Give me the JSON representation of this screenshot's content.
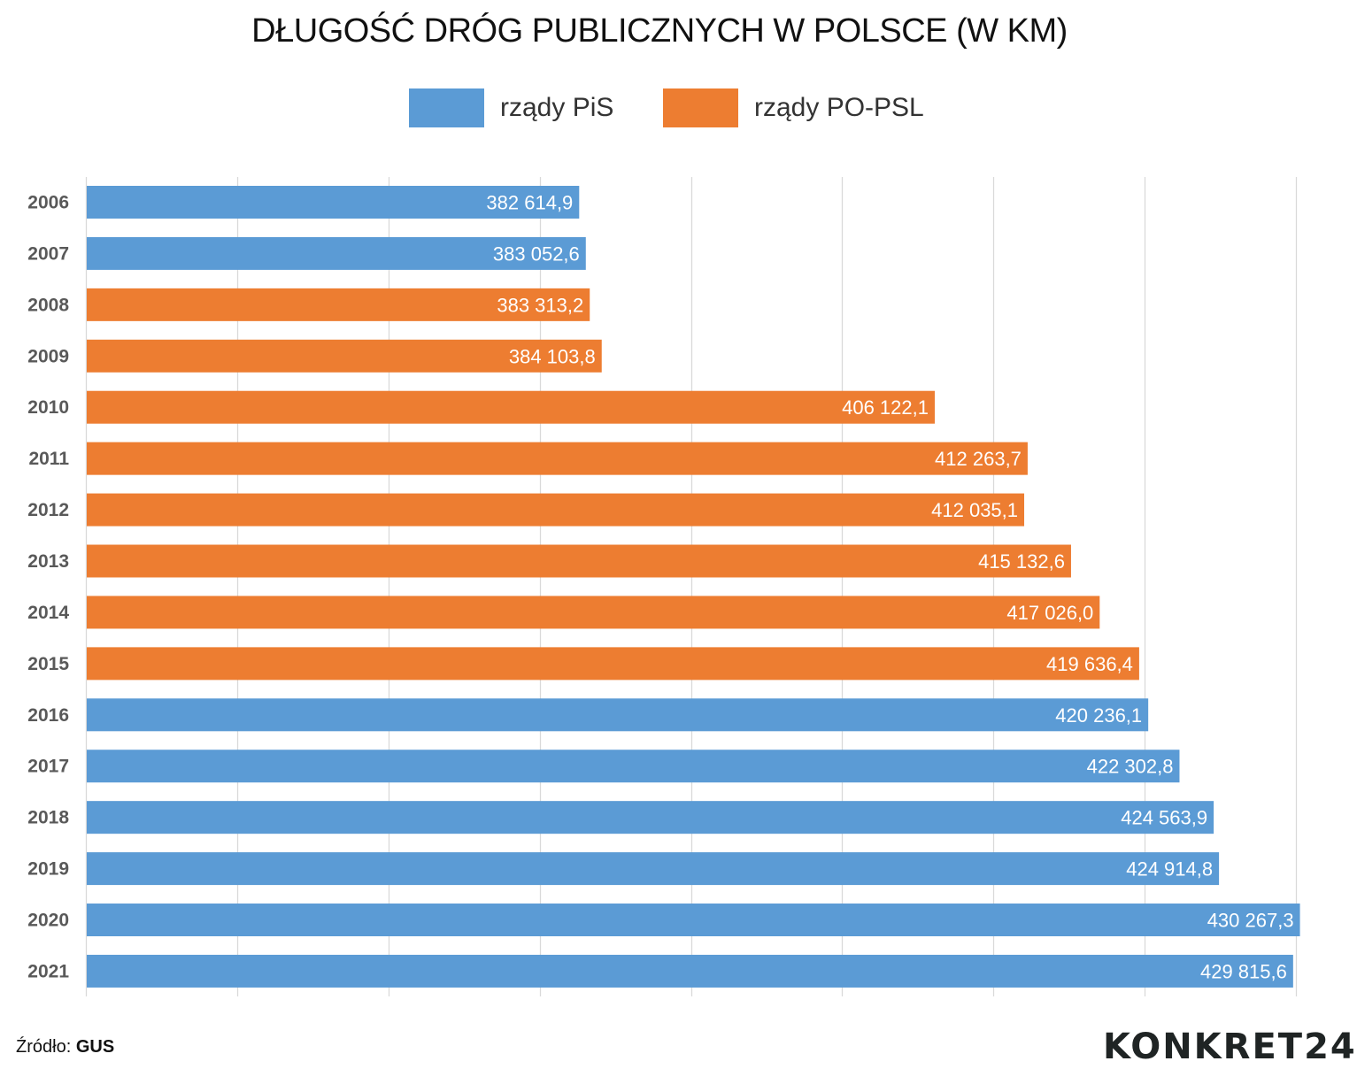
{
  "chart_data": {
    "type": "bar",
    "orientation": "horizontal",
    "title": "DŁUGOŚĆ DRÓG PUBLICZNYCH W POLSCE (W KM)",
    "categories": [
      "2006",
      "2007",
      "2008",
      "2009",
      "2010",
      "2011",
      "2012",
      "2013",
      "2014",
      "2015",
      "2016",
      "2017",
      "2018",
      "2019",
      "2020",
      "2021"
    ],
    "values": [
      382614.9,
      383052.6,
      383313.2,
      384103.8,
      406122.1,
      412263.7,
      412035.1,
      415132.6,
      417026.0,
      419636.4,
      420236.1,
      422302.8,
      424563.9,
      424914.8,
      430267.3,
      429815.6
    ],
    "data_labels": [
      "382 614,9",
      "383 052,6",
      "383 313,2",
      "384 103,8",
      "406 122,1",
      "412 263,7",
      "412 035,1",
      "415 132,6",
      "417 026,0",
      "419 636,4",
      "420 236,1",
      "422 302,8",
      "424 563,9",
      "424 914,8",
      "430 267,3",
      "429 815,6"
    ],
    "group": [
      "PiS",
      "PiS",
      "PO-PSL",
      "PO-PSL",
      "PO-PSL",
      "PO-PSL",
      "PO-PSL",
      "PO-PSL",
      "PO-PSL",
      "PO-PSL",
      "PiS",
      "PiS",
      "PiS",
      "PiS",
      "PiS",
      "PiS"
    ],
    "legend": [
      {
        "key": "PiS",
        "name": "rządy PiS",
        "color": "#5b9bd5"
      },
      {
        "key": "PO-PSL",
        "name": "rządy PO-PSL",
        "color": "#ed7d31"
      }
    ],
    "legend_position": "top",
    "xlim": [
      350000,
      430000
    ],
    "grid_step": 10000,
    "grid": true,
    "xlabel": "",
    "ylabel": ""
  },
  "source": {
    "prefix": "Źródło:",
    "name": "GUS"
  },
  "logo": "KONKRET24"
}
